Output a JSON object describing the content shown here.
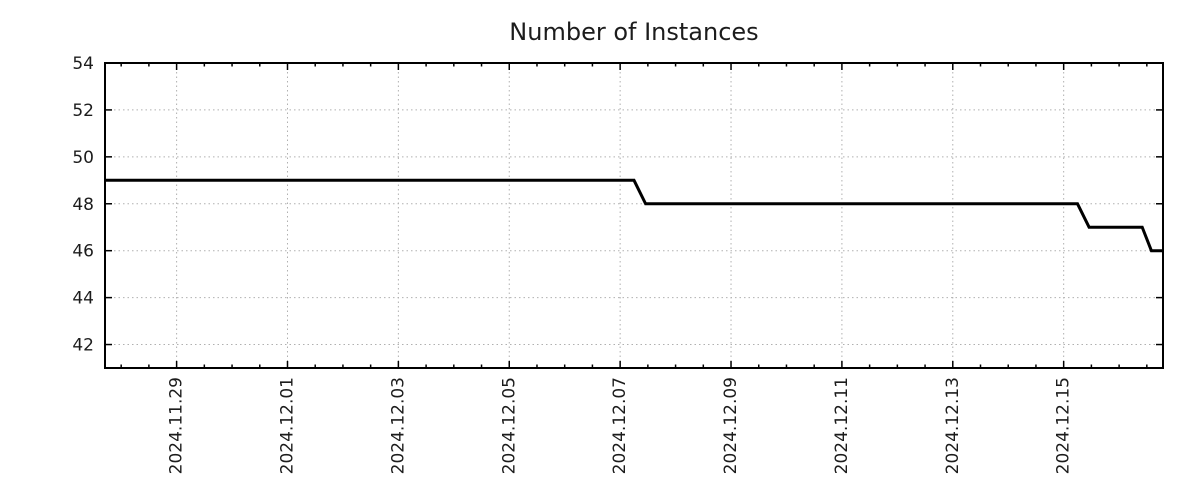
{
  "page": {
    "background": "#ffffff"
  },
  "chart_data": {
    "type": "line",
    "line_style": "step",
    "title": "Number of Instances",
    "xlabel": "",
    "ylabel": "",
    "legend": "none",
    "grid": true,
    "x_range": [
      "2024-11-27T17:00:00",
      "2024-12-16T19:00:00"
    ],
    "y_range": [
      41,
      54
    ],
    "y_ticks": [
      42,
      44,
      46,
      48,
      50,
      52,
      54
    ],
    "x_ticks": [
      {
        "value": "2024-11-29T00:00:00",
        "label": "2024.11.29"
      },
      {
        "value": "2024-12-01T00:00:00",
        "label": "2024.12.01"
      },
      {
        "value": "2024-12-03T00:00:00",
        "label": "2024.12.03"
      },
      {
        "value": "2024-12-05T00:00:00",
        "label": "2024.12.05"
      },
      {
        "value": "2024-12-07T00:00:00",
        "label": "2024.12.07"
      },
      {
        "value": "2024-12-09T00:00:00",
        "label": "2024.12.09"
      },
      {
        "value": "2024-12-11T00:00:00",
        "label": "2024.12.11"
      },
      {
        "value": "2024-12-13T00:00:00",
        "label": "2024.12.13"
      },
      {
        "value": "2024-12-15T00:00:00",
        "label": "2024.12.15"
      }
    ],
    "x_minor_ticks_per_major_interval": 4,
    "series": [
      {
        "name": "instances",
        "color": "#000000",
        "stroke_width": 3,
        "points": [
          {
            "t": "2024-11-27T17:00:00",
            "v": 49
          },
          {
            "t": "2024-12-07T06:00:00",
            "v": 49
          },
          {
            "t": "2024-12-07T11:00:00",
            "v": 48
          },
          {
            "t": "2024-12-15T06:00:00",
            "v": 48
          },
          {
            "t": "2024-12-15T11:00:00",
            "v": 47
          },
          {
            "t": "2024-12-16T10:00:00",
            "v": 47
          },
          {
            "t": "2024-12-16T14:00:00",
            "v": 46
          },
          {
            "t": "2024-12-16T19:00:00",
            "v": 46
          }
        ]
      }
    ],
    "colors": {
      "line": "#000000",
      "grid": "#b0b0b0",
      "axis": "#000000",
      "text": "#1c1c1c",
      "background": "#ffffff"
    }
  }
}
